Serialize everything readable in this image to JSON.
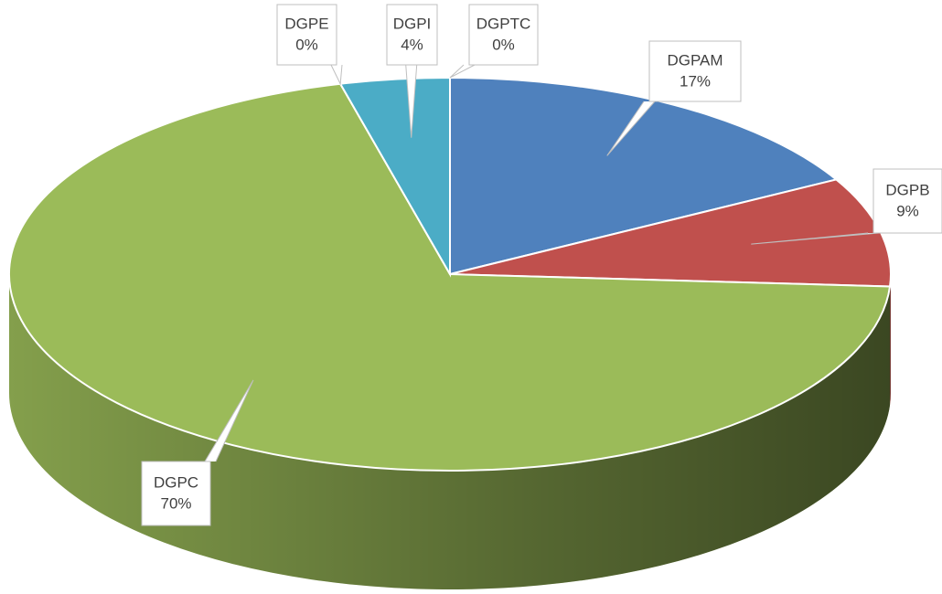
{
  "chart_data": {
    "type": "pie3d",
    "categories": [
      "DGPAM",
      "DGPB",
      "DGPC",
      "DGPE",
      "DGPI",
      "DGPTC"
    ],
    "values": [
      17,
      9,
      70,
      0,
      4,
      0
    ],
    "value_labels": [
      "17%",
      "9%",
      "70%",
      "0%",
      "4%",
      "0%"
    ],
    "colors": [
      "#4f81bd",
      "#c0504d",
      "#9bbb59",
      "#8064a2",
      "#4bacc6",
      "#f79646"
    ]
  }
}
